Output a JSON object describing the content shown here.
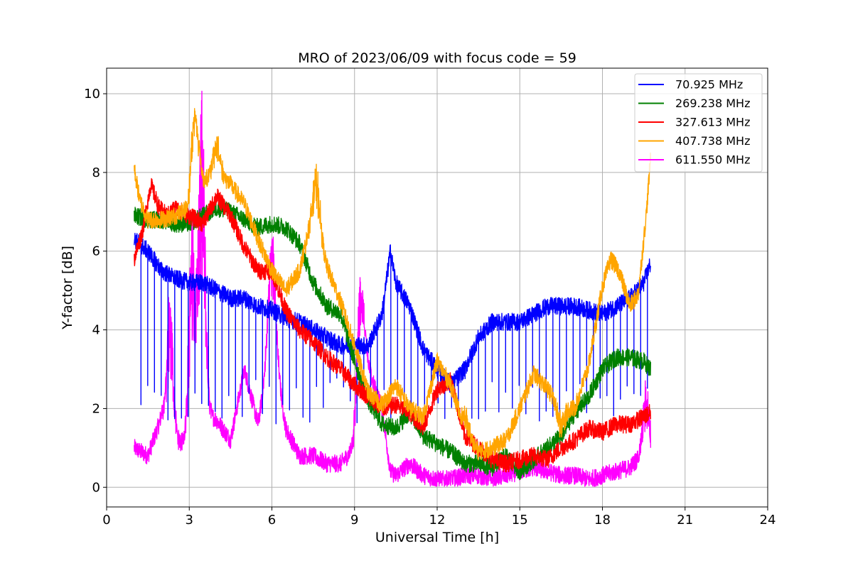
{
  "chart_data": {
    "type": "line",
    "title": "MRO of 2023/06/09 with focus code = 59",
    "xlabel": "Universal Time [h]",
    "ylabel": "Y-factor [dB]",
    "xlim": [
      0,
      24
    ],
    "ylim": [
      -0.5,
      10.65
    ],
    "xticks": [
      0,
      3,
      6,
      9,
      12,
      15,
      18,
      21,
      24
    ],
    "yticks": [
      0,
      2,
      4,
      6,
      8,
      10
    ],
    "grid": true,
    "legend_position": "top-right",
    "series": [
      {
        "name": "  70.925 MHz",
        "color": "#0000ff",
        "x": [
          1.0,
          1.5,
          2.0,
          2.5,
          3.0,
          3.5,
          4.0,
          4.5,
          5.0,
          5.5,
          6.0,
          6.5,
          7.0,
          7.5,
          8.0,
          8.5,
          9.0,
          9.5,
          10.0,
          10.3,
          10.5,
          11.0,
          11.5,
          12.0,
          12.5,
          13.0,
          13.5,
          14.0,
          14.5,
          15.0,
          15.5,
          16.0,
          16.5,
          17.0,
          17.5,
          18.0,
          18.5,
          19.0,
          19.5,
          19.75
        ],
        "y": [
          6.3,
          6.0,
          5.5,
          5.3,
          5.2,
          5.2,
          5.0,
          4.8,
          4.8,
          4.6,
          4.5,
          4.3,
          4.2,
          4.0,
          3.8,
          3.6,
          3.6,
          3.6,
          4.4,
          6.0,
          5.2,
          4.6,
          3.5,
          3.0,
          2.6,
          3.0,
          3.8,
          4.2,
          4.2,
          4.2,
          4.4,
          4.6,
          4.6,
          4.6,
          4.5,
          4.4,
          4.6,
          4.8,
          5.2,
          5.7
        ],
        "dip_floor": 1.6
      },
      {
        "name": "269.238 MHz",
        "color": "#008000",
        "x": [
          1.0,
          1.5,
          2.0,
          2.5,
          3.0,
          3.5,
          4.0,
          4.5,
          5.0,
          5.5,
          6.0,
          6.5,
          7.0,
          7.5,
          8.0,
          8.5,
          9.0,
          9.5,
          10.0,
          10.5,
          11.0,
          11.5,
          12.0,
          12.5,
          13.0,
          13.5,
          14.0,
          14.5,
          15.0,
          15.5,
          16.0,
          16.5,
          17.0,
          17.5,
          18.0,
          18.5,
          19.0,
          19.5,
          19.75
        ],
        "y": [
          6.9,
          6.8,
          6.8,
          6.7,
          6.7,
          6.9,
          7.1,
          7.0,
          6.8,
          6.6,
          6.7,
          6.6,
          6.2,
          5.2,
          4.6,
          4.4,
          3.2,
          2.2,
          1.6,
          1.5,
          1.9,
          1.3,
          1.1,
          0.9,
          0.6,
          0.6,
          0.5,
          0.8,
          0.4,
          0.7,
          1.0,
          1.3,
          1.9,
          2.3,
          3.0,
          3.3,
          3.3,
          3.2,
          3.0
        ]
      },
      {
        "name": "327.613 MHz",
        "color": "#ff0000",
        "x": [
          1.0,
          1.3,
          1.6,
          1.9,
          2.2,
          2.5,
          3.0,
          3.5,
          4.0,
          4.5,
          5.0,
          5.5,
          6.0,
          6.5,
          7.0,
          7.5,
          8.0,
          8.5,
          9.0,
          9.5,
          10.0,
          10.5,
          11.0,
          11.5,
          12.0,
          12.5,
          13.0,
          13.5,
          14.0,
          14.5,
          15.0,
          15.5,
          16.0,
          16.5,
          17.0,
          17.5,
          18.0,
          18.5,
          19.0,
          19.5,
          19.75
        ],
        "y": [
          5.8,
          6.5,
          7.7,
          7.1,
          6.9,
          7.1,
          6.9,
          6.7,
          7.4,
          6.9,
          6.1,
          5.5,
          5.5,
          4.5,
          4.0,
          3.7,
          3.3,
          3.0,
          2.6,
          2.3,
          2.0,
          2.1,
          1.9,
          1.5,
          2.5,
          2.7,
          1.3,
          1.0,
          0.7,
          0.6,
          0.7,
          0.8,
          0.7,
          1.0,
          1.2,
          1.5,
          1.4,
          1.6,
          1.6,
          1.8,
          1.9
        ]
      },
      {
        "name": "407.738 MHz",
        "color": "#ffa500",
        "x": [
          1.0,
          1.2,
          1.5,
          2.0,
          2.5,
          3.0,
          3.2,
          3.5,
          4.0,
          4.5,
          5.0,
          5.5,
          6.0,
          6.5,
          7.0,
          7.3,
          7.6,
          8.0,
          8.5,
          9.0,
          9.5,
          10.0,
          10.5,
          11.0,
          11.5,
          12.0,
          12.5,
          13.0,
          13.5,
          14.0,
          14.5,
          15.0,
          15.5,
          16.0,
          16.5,
          17.0,
          17.5,
          18.0,
          18.3,
          18.6,
          19.0,
          19.3,
          19.6,
          19.75
        ],
        "y": [
          8.1,
          7.3,
          6.8,
          6.8,
          6.9,
          7.1,
          8.8,
          7.8,
          8.0,
          7.7,
          7.2,
          6.3,
          5.5,
          5.0,
          5.5,
          6.4,
          6.8,
          5.6,
          4.7,
          3.6,
          2.4,
          2.1,
          2.6,
          2.0,
          1.8,
          3.2,
          2.6,
          1.5,
          0.9,
          1.0,
          1.2,
          2.0,
          2.9,
          2.5,
          2.0,
          2.0,
          3.1,
          5.1,
          5.8,
          5.5,
          4.6,
          4.9,
          7.0,
          8.4
        ],
        "bursts": [
          [
            3.2,
            9.6,
            5.0
          ],
          [
            4.0,
            9.0,
            5.5
          ],
          [
            7.6,
            8.1,
            6.2
          ],
          [
            13.0,
            1.9,
            0.5
          ],
          [
            16.5,
            1.3,
            0.4
          ]
        ]
      },
      {
        "name": "611.550 MHz",
        "color": "#ff00ff",
        "x": [
          1.0,
          1.5,
          2.0,
          2.5,
          3.0,
          3.5,
          4.0,
          4.5,
          5.0,
          5.5,
          6.0,
          6.5,
          7.0,
          7.5,
          8.0,
          8.5,
          9.0,
          9.3,
          9.6,
          10.0,
          10.3,
          10.5,
          11.0,
          11.5,
          12.0,
          12.5,
          13.0,
          13.5,
          14.0,
          14.5,
          15.0,
          15.5,
          16.0,
          16.5,
          17.0,
          17.5,
          18.0,
          18.5,
          19.0,
          19.5,
          19.75
        ],
        "y": [
          1.0,
          0.8,
          1.8,
          1.1,
          1.2,
          2.0,
          1.7,
          1.2,
          3.0,
          1.6,
          4.0,
          1.5,
          0.8,
          0.8,
          0.6,
          0.6,
          1.0,
          4.0,
          2.8,
          2.0,
          0.4,
          0.3,
          0.6,
          0.3,
          0.2,
          0.2,
          0.3,
          0.3,
          0.2,
          0.3,
          0.4,
          0.5,
          0.4,
          0.3,
          0.3,
          0.2,
          0.3,
          0.4,
          0.5,
          0.9,
          0.8
        ],
        "bursts": [
          [
            3.45,
            10.1,
            2.0
          ],
          [
            3.1,
            6.8,
            1.5
          ],
          [
            6.0,
            6.6,
            1.8
          ],
          [
            9.2,
            5.2,
            2.0
          ],
          [
            2.3,
            5.0,
            1.0
          ],
          [
            19.6,
            2.7,
            0.9
          ]
        ]
      }
    ]
  }
}
